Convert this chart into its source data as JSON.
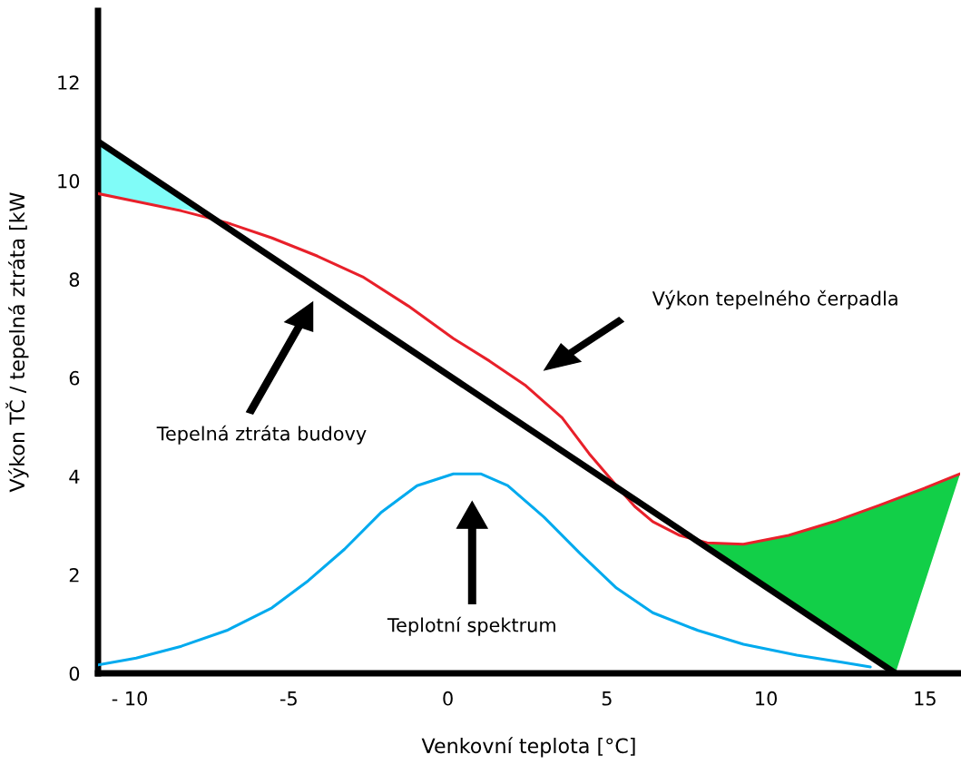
{
  "chart_data": {
    "type": "line",
    "xlabel": "Venkovní teplota [°C]",
    "ylabel": "Výkon TČ / tepelná ztráta [kW",
    "xlim": [
      -11,
      16.1
    ],
    "ylim": [
      0,
      13.45
    ],
    "xticks": [
      {
        "value": -10,
        "label": "- 10"
      },
      -5,
      0,
      5,
      10,
      15
    ],
    "yticks": [
      0,
      2,
      4,
      6,
      8,
      10,
      12
    ],
    "grid": false,
    "legend": false,
    "series": [
      {
        "color": "#00aaee",
        "x": [
          -11,
          -9.8,
          -8.38,
          -6.95,
          -5.53,
          -4.39,
          -3.25,
          -2.11,
          -0.97,
          0.17,
          1.03,
          1.88,
          3.02,
          4.16,
          5.3,
          6.44,
          7.86,
          9.29,
          10.97,
          12.42,
          13.28
        ],
        "values": [
          0.17,
          0.31,
          0.55,
          0.87,
          1.33,
          1.88,
          2.52,
          3.26,
          3.81,
          4.05,
          4.05,
          3.81,
          3.17,
          2.43,
          1.73,
          1.23,
          0.87,
          0.59,
          0.37,
          0.22,
          0.13
        ]
      },
      {
        "color": "#e8202a",
        "x": [
          -11,
          -9.8,
          -8.38,
          -6.95,
          -5.53,
          -4.1,
          -2.68,
          -1.25,
          0.17,
          1.31,
          2.45,
          3.59,
          4.44,
          5.3,
          5.87,
          6.44,
          7.29,
          8.15,
          9.29,
          10.71,
          12.14,
          13.56,
          14.99,
          16.1
        ],
        "values": [
          9.74,
          9.58,
          9.39,
          9.15,
          8.84,
          8.47,
          8.05,
          7.46,
          6.8,
          6.34,
          5.84,
          5.19,
          4.46,
          3.81,
          3.39,
          3.08,
          2.8,
          2.65,
          2.62,
          2.8,
          3.08,
          3.41,
          3.76,
          4.05
        ]
      },
      {
        "color": "#000000",
        "x": [
          -11,
          14.07
        ],
        "values": [
          10.8,
          0
        ]
      },
      {
        "color": "#80fcf8",
        "x": [
          -11,
          -9.3,
          -7.6
        ],
        "values": [
          null,
          null,
          null
        ],
        "lower": [
          9.74,
          9.52,
          9.35
        ],
        "upper": [
          10.8,
          10.07,
          9.35
        ]
      },
      {
        "color": "#12cf48",
        "x": [
          8.0,
          9.29,
          10.71,
          12.14,
          13.56,
          14.07,
          14.99,
          16.1
        ],
        "values": [
          null,
          null,
          null,
          null,
          null,
          null,
          null,
          null
        ],
        "lower": [
          2.62,
          2.06,
          1.45,
          0.83,
          0.22,
          0,
          1.84,
          4.05
        ],
        "upper": [
          2.63,
          2.62,
          2.8,
          3.08,
          3.41,
          3.53,
          3.76,
          4.05
        ]
      }
    ],
    "annotations": [
      "Tepelná ztráta budovy",
      "Výkon tepelného čerpadla",
      "Teplotní spektrum"
    ]
  }
}
